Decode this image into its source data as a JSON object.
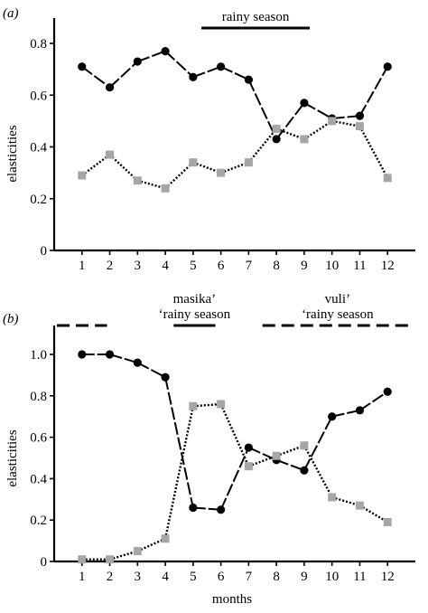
{
  "chart_data": [
    {
      "type": "line",
      "panel_label": "(a)",
      "ylabel": "elasticities",
      "xlabel": "",
      "x": [
        1,
        2,
        3,
        4,
        5,
        6,
        7,
        8,
        9,
        10,
        11,
        12
      ],
      "ylim": [
        0,
        0.8
      ],
      "yticks": [
        0,
        0.2,
        0.4,
        0.6,
        0.8
      ],
      "ytick_labels": [
        "0",
        "0.2",
        "0.4",
        "0.6",
        "0.8"
      ],
      "xlim": [
        0,
        13
      ],
      "series": [
        {
          "marker": "circle",
          "style": "solid-dash",
          "color": "#000000",
          "values": [
            0.71,
            0.63,
            0.73,
            0.77,
            0.67,
            0.71,
            0.66,
            0.43,
            0.57,
            0.51,
            0.52,
            0.71
          ]
        },
        {
          "marker": "square",
          "style": "dotted",
          "color": "#a6a6a6",
          "values": [
            0.29,
            0.37,
            0.27,
            0.24,
            0.34,
            0.3,
            0.34,
            0.47,
            0.43,
            0.5,
            0.48,
            0.28
          ]
        }
      ],
      "seasons": [
        {
          "label": "rainy season",
          "from": 5.3,
          "to": 9.2,
          "style": "solid"
        }
      ]
    },
    {
      "type": "line",
      "panel_label": "(b)",
      "ylabel": "elasticities",
      "xlabel": "months",
      "x": [
        1,
        2,
        3,
        4,
        5,
        6,
        7,
        8,
        9,
        10,
        11,
        12
      ],
      "ylim": [
        0,
        1.0
      ],
      "yticks": [
        0,
        0.2,
        0.4,
        0.6,
        0.8,
        1.0
      ],
      "ytick_labels": [
        "0",
        "0.2",
        "0.4",
        "0.6",
        "0.8",
        "1.0"
      ],
      "xlim": [
        0,
        13
      ],
      "series": [
        {
          "marker": "circle",
          "style": "solid-dash",
          "color": "#000000",
          "values": [
            1.0,
            1.0,
            0.96,
            0.89,
            0.26,
            0.25,
            0.55,
            0.49,
            0.44,
            0.7,
            0.73,
            0.82
          ]
        },
        {
          "marker": "square",
          "style": "dotted",
          "color": "#a6a6a6",
          "values": [
            0.01,
            0.01,
            0.05,
            0.11,
            0.75,
            0.76,
            0.46,
            0.51,
            0.56,
            0.31,
            0.27,
            0.19
          ]
        }
      ],
      "seasons": [
        {
          "label": "",
          "from": 0.1,
          "to": 1.9,
          "style": "dashed"
        },
        {
          "label": "masika’\n‘rainy season",
          "from": 4.3,
          "to": 5.8,
          "style": "solid"
        },
        {
          "label": "vuli’\n‘rainy season",
          "from": 7.5,
          "to": 12.9,
          "style": "dashed"
        }
      ]
    }
  ]
}
